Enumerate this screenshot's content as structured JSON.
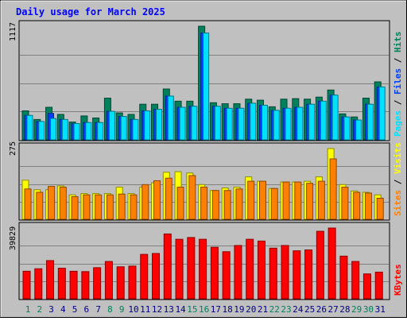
{
  "title": "Daily usage for March 2025",
  "colors": {
    "hits": "#00805c",
    "files": "#0040ff",
    "pages": "#00e0ff",
    "visits": "#ffff00",
    "sites": "#ff8000",
    "kbytes": "#ff0000",
    "title": "#0000ff",
    "weekday_label": "#000080",
    "weekend_label": "#00805c",
    "panel_bg": "#c0c0c0",
    "frame_bg": "#c0c0c0"
  },
  "chart_data": [
    {
      "type": "bar",
      "name": "hits_files_pages",
      "ymax_label": "1117",
      "ylim": [
        0,
        1117
      ],
      "grid": true,
      "categories": [
        "1",
        "2",
        "3",
        "4",
        "5",
        "6",
        "7",
        "8",
        "9",
        "10",
        "11",
        "12",
        "13",
        "14",
        "15",
        "16",
        "17",
        "18",
        "19",
        "20",
        "21",
        "22",
        "23",
        "24",
        "25",
        "26",
        "27",
        "28",
        "29",
        "30",
        "31"
      ],
      "weekend_days": [
        "1",
        "2",
        "8",
        "9",
        "15",
        "16",
        "22",
        "23",
        "29",
        "30"
      ],
      "series": [
        {
          "name": "Hits",
          "values": [
            285,
            200,
            320,
            250,
            175,
            235,
            215,
            410,
            265,
            250,
            350,
            350,
            500,
            380,
            380,
            1117,
            365,
            355,
            355,
            400,
            390,
            325,
            400,
            405,
            400,
            420,
            490,
            255,
            225,
            410,
            570
          ]
        },
        {
          "name": "Files",
          "values": [
            240,
            180,
            260,
            200,
            160,
            170,
            170,
            280,
            230,
            200,
            285,
            300,
            430,
            320,
            330,
            1050,
            330,
            310,
            310,
            360,
            340,
            290,
            310,
            320,
            350,
            380,
            440,
            225,
            195,
            350,
            520
          ]
        },
        {
          "name": "Pages",
          "values": [
            240,
            180,
            210,
            200,
            160,
            170,
            170,
            280,
            230,
            200,
            285,
            300,
            430,
            320,
            330,
            1050,
            330,
            310,
            310,
            360,
            340,
            290,
            310,
            320,
            350,
            380,
            440,
            225,
            195,
            350,
            520
          ]
        }
      ],
      "legend": [
        "Pages",
        "Files",
        "Hits"
      ]
    },
    {
      "type": "bar",
      "name": "visits_sites",
      "ymax_label": "275",
      "ylim": [
        0,
        275
      ],
      "grid": true,
      "categories": [
        "1",
        "2",
        "3",
        "4",
        "5",
        "6",
        "7",
        "8",
        "9",
        "10",
        "11",
        "12",
        "13",
        "14",
        "15",
        "16",
        "17",
        "18",
        "19",
        "20",
        "21",
        "22",
        "23",
        "24",
        "25",
        "26",
        "27",
        "28",
        "29",
        "30",
        "31"
      ],
      "series": [
        {
          "name": "Visits",
          "values": [
            152,
            115,
            115,
            130,
            95,
            100,
            100,
            100,
            125,
            100,
            125,
            142,
            183,
            185,
            180,
            135,
            112,
            122,
            125,
            165,
            148,
            120,
            145,
            145,
            148,
            165,
            275,
            135,
            110,
            105,
            95
          ]
        },
        {
          "name": "Sites",
          "values": [
            118,
            105,
            128,
            125,
            88,
            95,
            95,
            95,
            98,
            95,
            135,
            150,
            160,
            125,
            170,
            125,
            112,
            112,
            118,
            148,
            148,
            120,
            145,
            145,
            140,
            148,
            235,
            125,
            105,
            102,
            82
          ]
        }
      ],
      "legend": [
        "Sites",
        "Visits"
      ]
    },
    {
      "type": "bar",
      "name": "kbytes",
      "ymax_label": "39829",
      "ylim": [
        0,
        39829
      ],
      "grid": true,
      "categories": [
        "1",
        "2",
        "3",
        "4",
        "5",
        "6",
        "7",
        "8",
        "9",
        "10",
        "11",
        "12",
        "13",
        "14",
        "15",
        "16",
        "17",
        "18",
        "19",
        "20",
        "21",
        "22",
        "23",
        "24",
        "25",
        "26",
        "27",
        "28",
        "29",
        "30",
        "31"
      ],
      "series": [
        {
          "name": "KBytes",
          "values": [
            15500,
            16900,
            21500,
            17200,
            15500,
            15300,
            17500,
            21000,
            18000,
            18400,
            25000,
            25500,
            36500,
            33500,
            34500,
            33500,
            29000,
            26500,
            30000,
            33500,
            32500,
            28500,
            30000,
            27000,
            27500,
            38000,
            39829,
            24000,
            21000,
            14000,
            15000
          ]
        }
      ],
      "legend": [
        "KBytes"
      ]
    }
  ]
}
